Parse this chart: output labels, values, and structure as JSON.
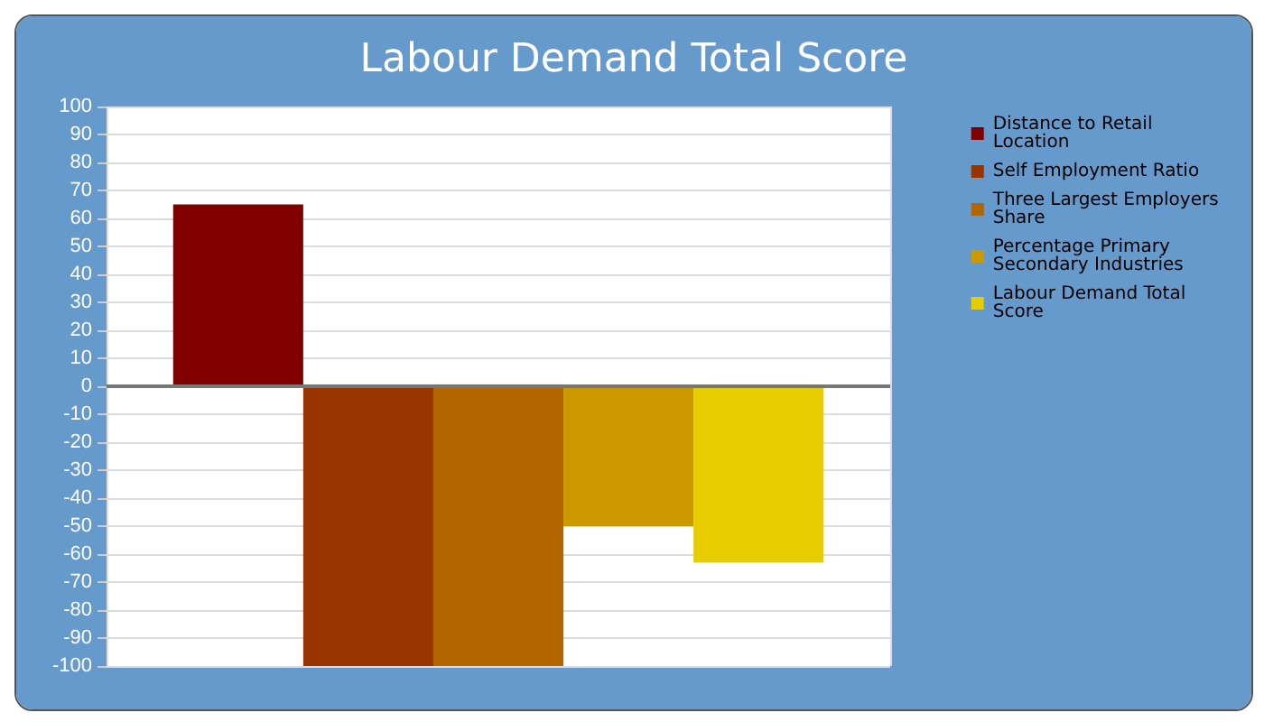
{
  "chart_data": {
    "type": "bar",
    "title": "Labour Demand Total Score",
    "categories": [
      null
    ],
    "series": [
      {
        "name": "Distance to Retail Location",
        "color": "#800000",
        "values": [
          65
        ]
      },
      {
        "name": "Self Employment Ratio",
        "color": "#993300",
        "values": [
          -100
        ]
      },
      {
        "name": "Three Largest Employers Share",
        "color": "#b36600",
        "values": [
          -100
        ]
      },
      {
        "name": "Percentage Primary Secondary Industries",
        "color": "#cc9900",
        "values": [
          -50
        ]
      },
      {
        "name": "Labour Demand Total Score",
        "color": "#e6cc00",
        "values": [
          -63
        ]
      }
    ],
    "ylim": [
      -100,
      100
    ],
    "yticks": [
      -100,
      -90,
      -80,
      -70,
      -60,
      -50,
      -40,
      -30,
      -20,
      -10,
      0,
      10,
      20,
      30,
      40,
      50,
      60,
      70,
      80,
      90,
      100
    ],
    "grid": true,
    "legend": "right"
  }
}
